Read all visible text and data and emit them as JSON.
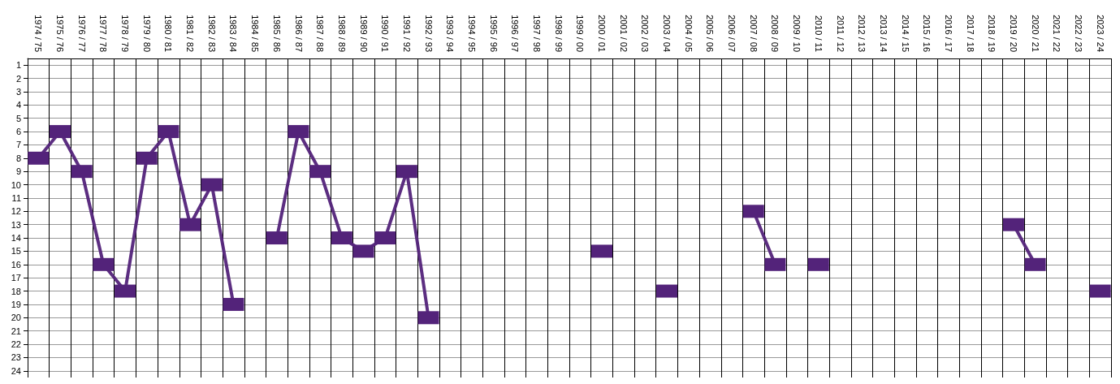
{
  "chart_data": {
    "type": "line",
    "categories": [
      "1974 / 75",
      "1975 / 76",
      "1976 / 77",
      "1977 / 78",
      "1978 / 79",
      "1979 / 80",
      "1980 / 81",
      "1981 / 82",
      "1982 / 83",
      "1983 / 84",
      "1984 / 85",
      "1985 / 86",
      "1986 / 87",
      "1987 / 88",
      "1988 / 89",
      "1989 / 90",
      "1990 / 91",
      "1991 / 92",
      "1992 / 93",
      "1993 / 94",
      "1994 / 95",
      "1995 / 96",
      "1996 / 97",
      "1997 / 98",
      "1998 / 99",
      "1999 / 00",
      "2000 / 01",
      "2001 / 02",
      "2002 / 03",
      "2003 / 04",
      "2004 / 05",
      "2005 / 06",
      "2006 / 07",
      "2007 / 08",
      "2008 / 09",
      "2009 / 10",
      "2010 / 11",
      "2011 / 12",
      "2012 / 13",
      "2013 / 14",
      "2014 / 15",
      "2015 / 16",
      "2016 / 17",
      "2017 / 18",
      "2018 / 19",
      "2019 / 20",
      "2020 / 21",
      "2021 / 22",
      "2022 / 23",
      "2023 / 24"
    ],
    "series": [
      {
        "color": "#53237a",
        "values": [
          8,
          6,
          9,
          16,
          18,
          8,
          6,
          13,
          10,
          19,
          null,
          14,
          6,
          9,
          14,
          15,
          14,
          9,
          20,
          null,
          null,
          null,
          null,
          null,
          null,
          null,
          15,
          null,
          null,
          18,
          null,
          null,
          null,
          12,
          16,
          null,
          16,
          null,
          null,
          null,
          null,
          null,
          null,
          null,
          null,
          13,
          16,
          null,
          null,
          18
        ]
      }
    ],
    "ylim": [
      24.5,
      0.5
    ],
    "yticks": [
      1,
      2,
      3,
      4,
      5,
      6,
      7,
      8,
      9,
      10,
      11,
      12,
      13,
      14,
      15,
      16,
      17,
      18,
      19,
      20,
      21,
      22,
      23,
      24
    ],
    "grid": true,
    "marker": "square",
    "line_style": "solid"
  }
}
